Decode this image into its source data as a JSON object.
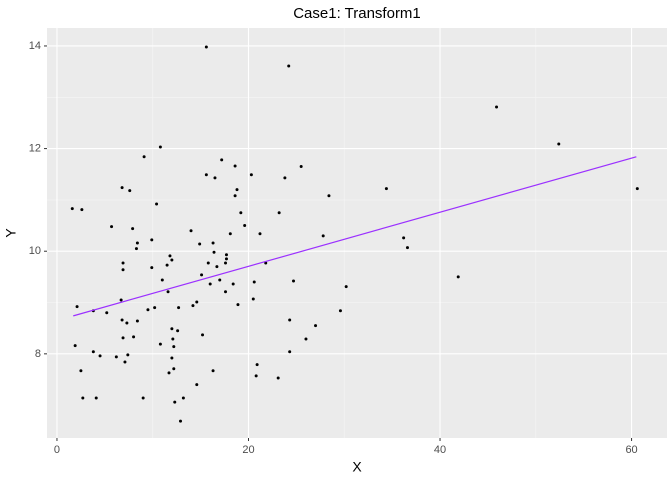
{
  "chart_data": {
    "type": "scatter",
    "title": "Case1: Transform1",
    "x_label": "X",
    "y_label": "Y",
    "x": [
      1.6,
      2.6,
      2.1,
      1.9,
      2.5,
      2.7,
      3.8,
      3.8,
      4.1,
      4.5,
      5.2,
      5.7,
      6.2,
      6.7,
      6.8,
      6.9,
      6.9,
      6.8,
      6.9,
      7.1,
      7.3,
      7.4,
      7.6,
      7.9,
      8.3,
      8.4,
      8.4,
      8.0,
      9.1,
      9.0,
      9.5,
      9.9,
      9.9,
      10.2,
      10.4,
      10.8,
      10.8,
      11.0,
      11.5,
      11.6,
      11.7,
      11.8,
      12.0,
      12.0,
      12.0,
      12.2,
      12.1,
      12.2,
      12.3,
      12.6,
      12.7,
      12.9,
      13.2,
      14.0,
      14.2,
      14.6,
      14.6,
      14.9,
      15.1,
      15.2,
      15.6,
      15.6,
      15.8,
      16.0,
      16.3,
      16.4,
      16.3,
      16.5,
      16.7,
      17.0,
      17.2,
      17.6,
      17.6,
      17.7,
      17.7,
      18.1,
      18.4,
      18.6,
      18.6,
      18.8,
      18.9,
      19.2,
      19.6,
      20.3,
      20.5,
      20.6,
      20.9,
      20.8,
      21.2,
      21.8,
      23.1,
      23.2,
      23.8,
      24.2,
      24.3,
      24.3,
      24.7,
      25.5,
      26.0,
      27.0,
      27.8,
      28.4,
      29.6,
      30.2,
      34.4,
      36.2,
      36.6,
      41.9,
      45.9,
      52.4,
      60.6
    ],
    "values": [
      10.83,
      10.81,
      8.92,
      8.16,
      7.67,
      7.14,
      8.84,
      8.04,
      7.14,
      7.96,
      8.8,
      10.48,
      7.94,
      9.05,
      11.24,
      9.77,
      9.64,
      8.66,
      8.31,
      7.84,
      8.6,
      7.98,
      11.18,
      10.44,
      10.05,
      10.16,
      8.64,
      8.33,
      11.84,
      7.14,
      8.86,
      10.22,
      9.68,
      8.9,
      10.92,
      12.03,
      8.19,
      9.44,
      9.73,
      9.21,
      7.63,
      9.91,
      9.83,
      8.49,
      7.92,
      8.14,
      8.29,
      7.71,
      7.06,
      8.45,
      8.9,
      6.69,
      7.14,
      10.4,
      8.94,
      7.4,
      9.01,
      10.14,
      9.54,
      8.37,
      13.98,
      11.49,
      9.77,
      9.36,
      10.16,
      9.98,
      7.67,
      11.43,
      9.7,
      9.44,
      11.78,
      9.21,
      9.77,
      9.85,
      9.93,
      10.34,
      9.36,
      11.66,
      11.08,
      11.2,
      8.96,
      10.75,
      10.5,
      11.49,
      9.07,
      9.4,
      7.79,
      7.57,
      10.34,
      9.77,
      7.53,
      10.75,
      11.43,
      13.61,
      8.66,
      8.04,
      9.42,
      11.65,
      8.29,
      8.55,
      10.3,
      11.08,
      8.84,
      9.31,
      11.22,
      10.26,
      10.07,
      9.5,
      12.81,
      12.09,
      11.22
    ],
    "color": "#000000",
    "fit_line": {
      "x": [
        1.7,
        60.5
      ],
      "values": [
        8.74,
        11.84
      ],
      "color": "#9b30ff"
    },
    "xlim": [
      -1.04,
      63.7
    ],
    "ylim": [
      6.36,
      14.35
    ],
    "xticks": [
      0,
      20,
      40,
      60
    ],
    "yticks": [
      8,
      10,
      12,
      14
    ],
    "grid": true
  }
}
